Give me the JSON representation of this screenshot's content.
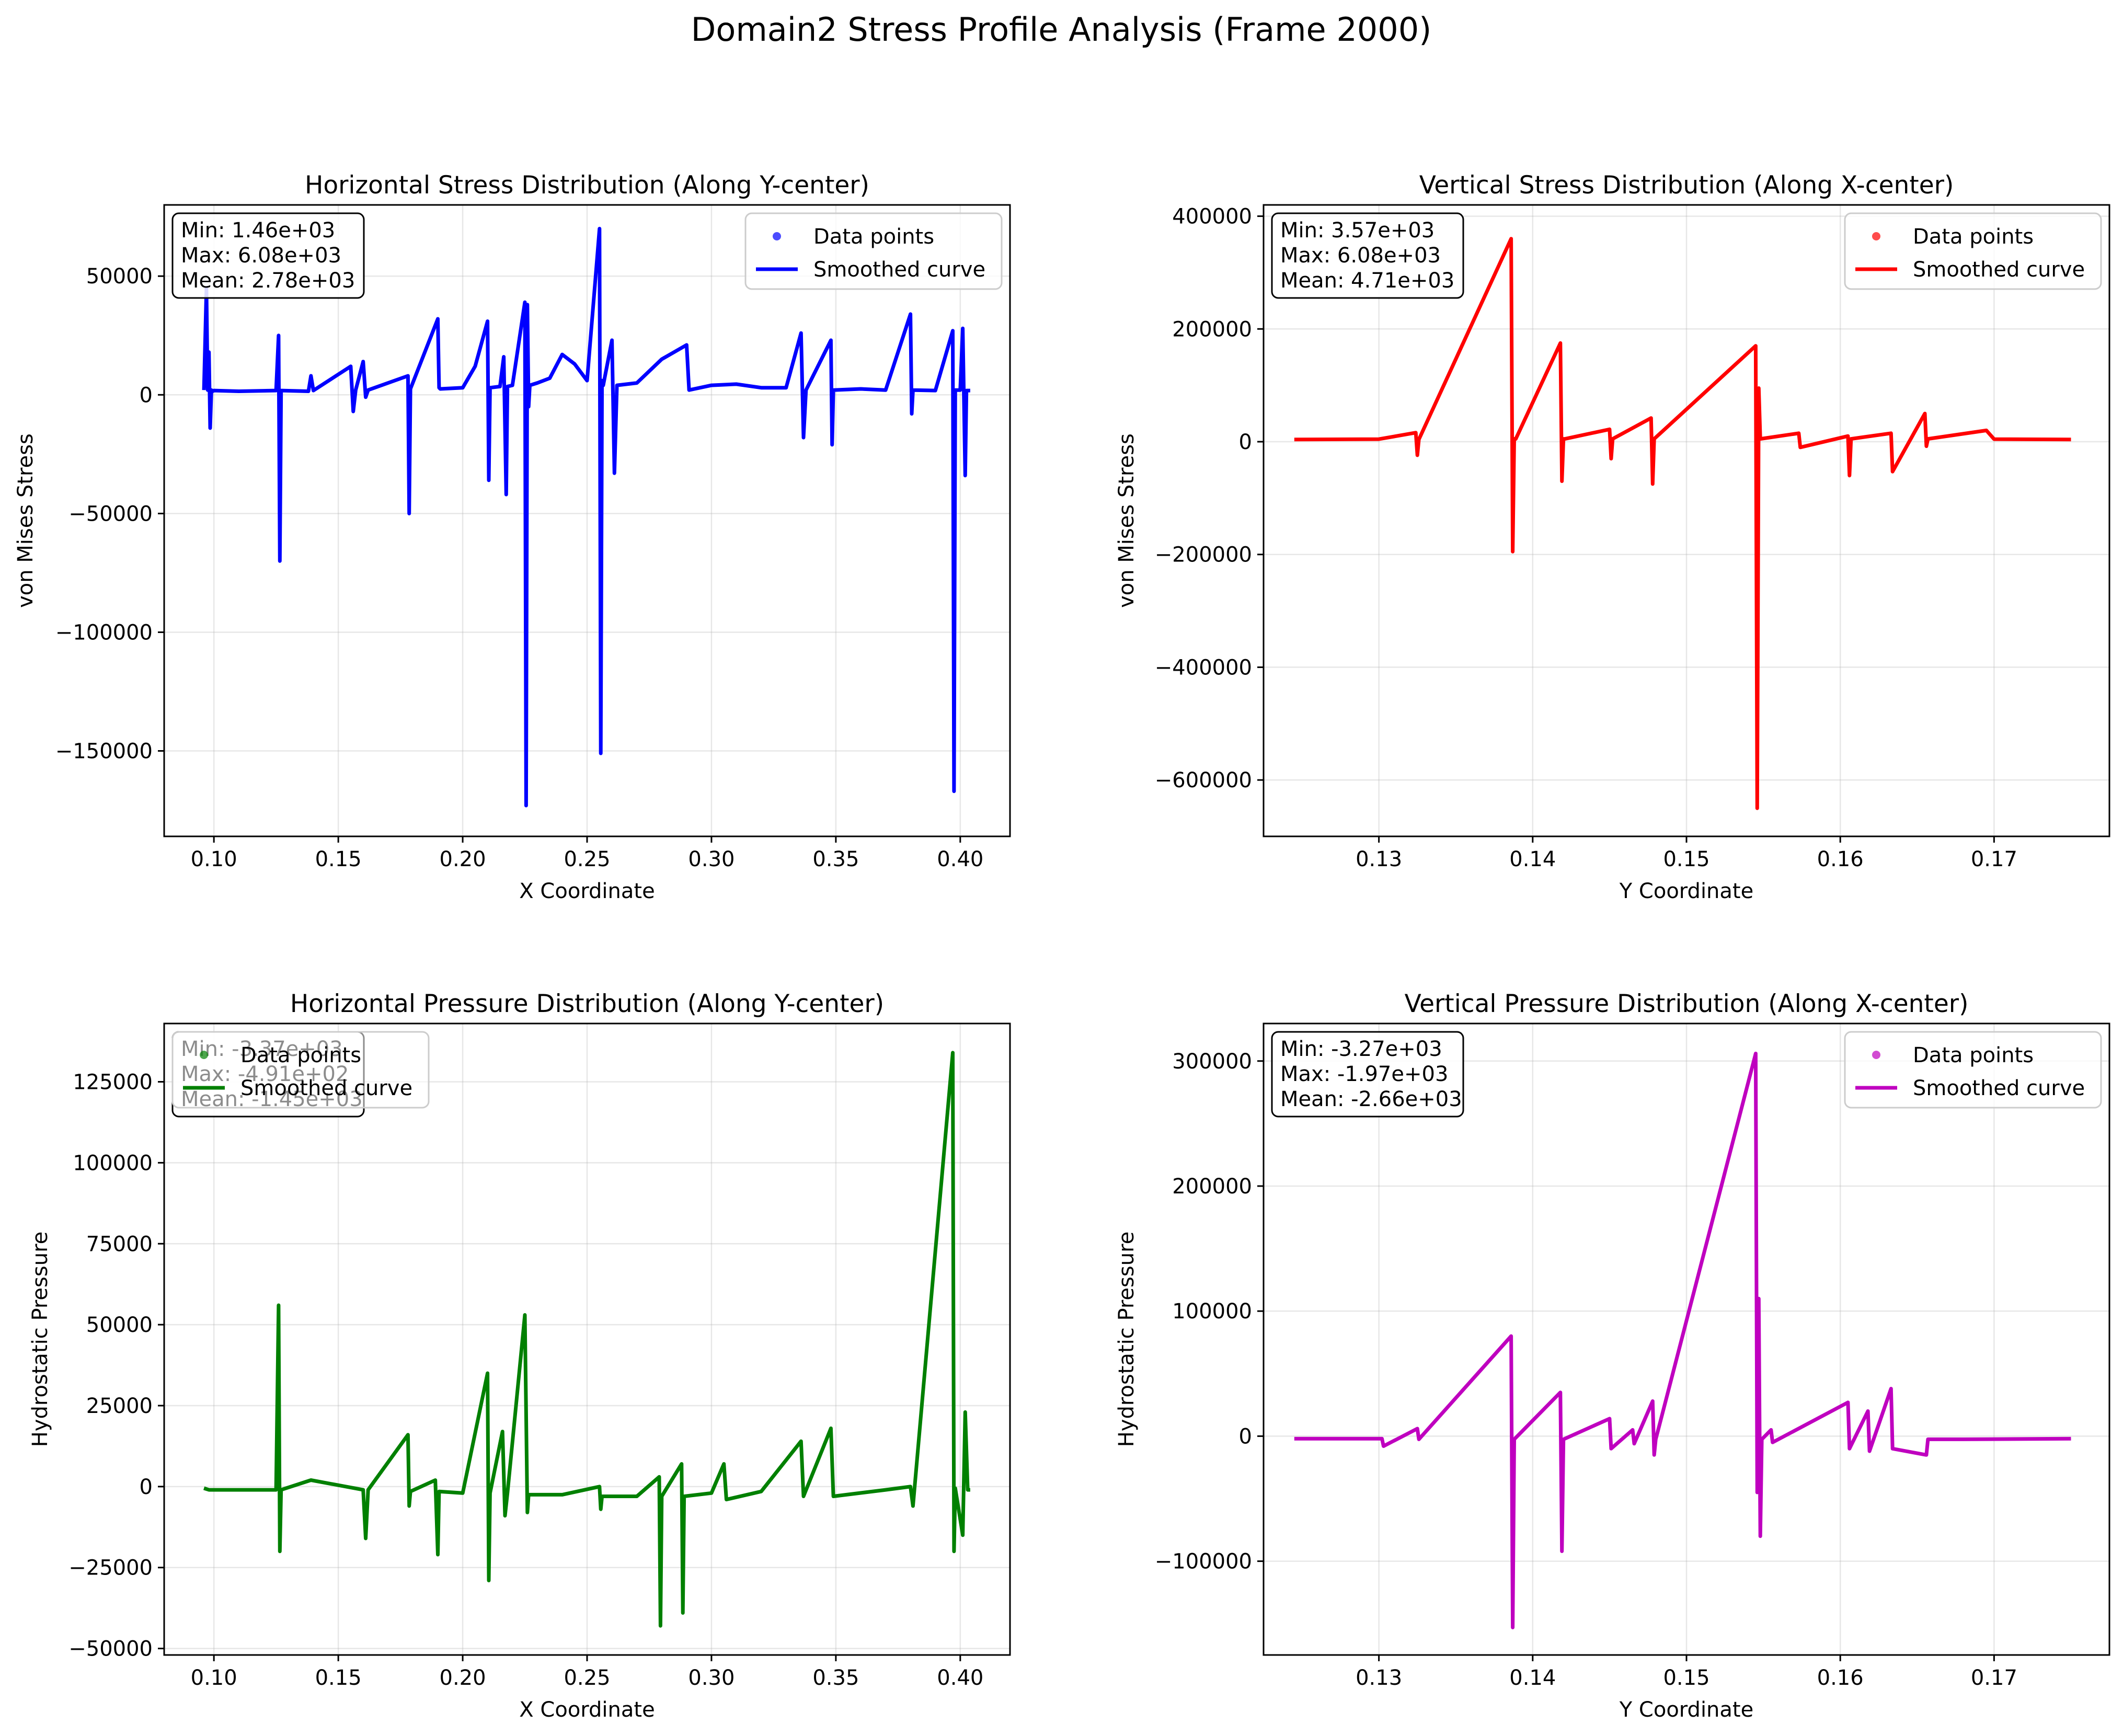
{
  "figure": {
    "title": "Domain2 Stress Profile Analysis (Frame 2000)"
  },
  "chart_data": [
    {
      "id": "p1",
      "type": "line",
      "title": "Horizontal Stress Distribution (Along Y-center)",
      "xlabel": "X Coordinate",
      "ylabel": "von Mises Stress",
      "xlim": [
        0.08,
        0.42
      ],
      "ylim": [
        -186000,
        80000
      ],
      "xticks": [
        0.1,
        0.15,
        0.2,
        0.25,
        0.3,
        0.35,
        0.4
      ],
      "xtick_labels": [
        "0.10",
        "0.15",
        "0.20",
        "0.25",
        "0.30",
        "0.35",
        "0.40"
      ],
      "yticks": [
        -150000,
        -100000,
        -50000,
        0,
        50000
      ],
      "ytick_labels": [
        "−150000",
        "−100000",
        "−50000",
        "0",
        "50000"
      ],
      "grid": true,
      "legend_position": "top-right",
      "color": "#0000ff",
      "stats": [
        "Min: 1.46e+03",
        "Max: 6.08e+03",
        "Mean: 2.78e+03"
      ],
      "series": [
        {
          "name": "Data points",
          "style": "markers"
        },
        {
          "name": "Smoothed curve",
          "style": "line",
          "x": [
            0.096,
            0.097,
            0.0975,
            0.098,
            0.0985,
            0.099,
            0.0995,
            0.1,
            0.11,
            0.125,
            0.126,
            0.1265,
            0.127,
            0.138,
            0.139,
            0.14,
            0.155,
            0.156,
            0.157,
            0.16,
            0.161,
            0.162,
            0.178,
            0.1785,
            0.179,
            0.19,
            0.1905,
            0.191,
            0.2,
            0.205,
            0.21,
            0.2105,
            0.211,
            0.215,
            0.2165,
            0.2175,
            0.218,
            0.22,
            0.225,
            0.2255,
            0.226,
            0.2265,
            0.227,
            0.23,
            0.235,
            0.24,
            0.245,
            0.25,
            0.255,
            0.2555,
            0.256,
            0.2565,
            0.26,
            0.261,
            0.262,
            0.27,
            0.28,
            0.29,
            0.291,
            0.3,
            0.31,
            0.32,
            0.33,
            0.336,
            0.337,
            0.338,
            0.348,
            0.3485,
            0.349,
            0.36,
            0.37,
            0.38,
            0.3805,
            0.381,
            0.39,
            0.397,
            0.3975,
            0.398,
            0.4,
            0.401,
            0.402,
            0.4025,
            0.403,
            0.404
          ],
          "values": [
            2000,
            45000,
            2000,
            18000,
            -14000,
            2000,
            1500,
            1800,
            1500,
            1800,
            25000,
            -70000,
            1800,
            1500,
            8000,
            1800,
            12000,
            -7000,
            2000,
            14000,
            -1000,
            2000,
            8000,
            -50000,
            2500,
            32000,
            3000,
            2500,
            3000,
            12000,
            31000,
            -36000,
            3000,
            3500,
            16000,
            -42000,
            3500,
            4000,
            39000,
            -173000,
            38000,
            -5000,
            4000,
            5000,
            7000,
            17000,
            13000,
            6000,
            70000,
            -151000,
            6000,
            4000,
            23000,
            -33000,
            4000,
            5000,
            15000,
            21000,
            2000,
            4000,
            4500,
            3000,
            3000,
            26000,
            -18000,
            2000,
            23000,
            -21000,
            2000,
            2500,
            2000,
            34000,
            -8000,
            2000,
            1800,
            27000,
            -167000,
            2000,
            2000,
            28000,
            -34000,
            1800,
            1800,
            1800
          ]
        }
      ]
    },
    {
      "id": "p2",
      "type": "line",
      "title": "Vertical Stress Distribution (Along X-center)",
      "xlabel": "Y Coordinate",
      "ylabel": "von Mises Stress",
      "xlim": [
        0.1225,
        0.1775
      ],
      "ylim": [
        -700000,
        420000
      ],
      "xticks": [
        0.13,
        0.14,
        0.15,
        0.16,
        0.17
      ],
      "xtick_labels": [
        "0.13",
        "0.14",
        "0.15",
        "0.16",
        "0.17"
      ],
      "yticks": [
        -600000,
        -400000,
        -200000,
        0,
        200000,
        400000
      ],
      "ytick_labels": [
        "−600000",
        "−400000",
        "−200000",
        "0",
        "200000",
        "400000"
      ],
      "grid": true,
      "legend_position": "top-right",
      "color": "#ff0000",
      "stats": [
        "Min: 3.57e+03",
        "Max: 6.08e+03",
        "Mean: 4.71e+03"
      ],
      "series": [
        {
          "name": "Data points",
          "style": "markers"
        },
        {
          "name": "Smoothed curve",
          "style": "line",
          "x": [
            0.1245,
            0.13,
            0.1324,
            0.1325,
            0.1326,
            0.1386,
            0.1387,
            0.1388,
            0.1389,
            0.1418,
            0.1419,
            0.142,
            0.1421,
            0.145,
            0.1451,
            0.1452,
            0.1477,
            0.1478,
            0.1479,
            0.1545,
            0.1546,
            0.1547,
            0.1548,
            0.1573,
            0.1574,
            0.1605,
            0.1606,
            0.1607,
            0.1633,
            0.1634,
            0.1655,
            0.1656,
            0.1657,
            0.1695,
            0.17,
            0.175
          ],
          "values": [
            4000,
            4500,
            16000,
            -24000,
            4000,
            360000,
            -195000,
            5000,
            5000,
            175000,
            -70000,
            5000,
            5000,
            22000,
            -30000,
            5000,
            42000,
            -75000,
            5000,
            170000,
            -650000,
            95000,
            5000,
            15000,
            -10000,
            10000,
            -60000,
            5000,
            15000,
            -53000,
            50000,
            -8000,
            5000,
            20000,
            4500,
            4000
          ]
        }
      ]
    },
    {
      "id": "p3",
      "type": "line",
      "title": "Horizontal Pressure Distribution (Along Y-center)",
      "xlabel": "X Coordinate",
      "ylabel": "Hydrostatic Pressure",
      "xlim": [
        0.08,
        0.42
      ],
      "ylim": [
        -52000,
        143000
      ],
      "xticks": [
        0.1,
        0.15,
        0.2,
        0.25,
        0.3,
        0.35,
        0.4
      ],
      "xtick_labels": [
        "0.10",
        "0.15",
        "0.20",
        "0.25",
        "0.30",
        "0.35",
        "0.40"
      ],
      "yticks": [
        -50000,
        -25000,
        0,
        25000,
        50000,
        75000,
        100000,
        125000
      ],
      "ytick_labels": [
        "−50000",
        "−25000",
        "0",
        "25000",
        "50000",
        "75000",
        "100000",
        "125000"
      ],
      "grid": true,
      "legend_position": "top-left",
      "color": "#008000",
      "stats": [
        "Min: -3.37e+03",
        "Max: -4.91e+02",
        "Mean: -1.45e+03"
      ],
      "series": [
        {
          "name": "Data points",
          "style": "markers"
        },
        {
          "name": "Smoothed curve",
          "style": "line",
          "x": [
            0.096,
            0.098,
            0.11,
            0.125,
            0.126,
            0.1265,
            0.127,
            0.139,
            0.16,
            0.161,
            0.162,
            0.178,
            0.1785,
            0.179,
            0.189,
            0.19,
            0.1905,
            0.2,
            0.21,
            0.2105,
            0.211,
            0.216,
            0.217,
            0.218,
            0.225,
            0.226,
            0.2265,
            0.24,
            0.255,
            0.2555,
            0.256,
            0.27,
            0.279,
            0.2795,
            0.28,
            0.288,
            0.2885,
            0.289,
            0.3,
            0.305,
            0.306,
            0.32,
            0.336,
            0.337,
            0.348,
            0.349,
            0.37,
            0.38,
            0.381,
            0.397,
            0.3975,
            0.398,
            0.401,
            0.402,
            0.403,
            0.404
          ],
          "values": [
            -500,
            -1000,
            -1000,
            -1000,
            56000,
            -20000,
            -1000,
            2000,
            -1000,
            -16000,
            -1000,
            16000,
            -6000,
            -1500,
            2000,
            -21000,
            -1500,
            -2000,
            35000,
            -29000,
            -2000,
            17000,
            -9000,
            -2000,
            53000,
            -8000,
            -2500,
            -2500,
            0,
            -7000,
            -3000,
            -3000,
            3000,
            -43000,
            -3000,
            7000,
            -39000,
            -3000,
            -2000,
            7000,
            -4000,
            -1500,
            14000,
            -3000,
            18000,
            -3000,
            -1000,
            0,
            -6000,
            134000,
            -20000,
            -500,
            -15000,
            23000,
            -1000,
            -1000
          ]
        }
      ]
    },
    {
      "id": "p4",
      "type": "line",
      "title": "Vertical Pressure Distribution (Along X-center)",
      "xlabel": "Y Coordinate",
      "ylabel": "Hydrostatic Pressure",
      "xlim": [
        0.1225,
        0.1775
      ],
      "ylim": [
        -175000,
        330000
      ],
      "xticks": [
        0.13,
        0.14,
        0.15,
        0.16,
        0.17
      ],
      "xtick_labels": [
        "0.13",
        "0.14",
        "0.15",
        "0.16",
        "0.17"
      ],
      "yticks": [
        -100000,
        0,
        100000,
        200000,
        300000
      ],
      "ytick_labels": [
        "−100000",
        "0",
        "100000",
        "200000",
        "300000"
      ],
      "grid": true,
      "legend_position": "top-right",
      "color": "#bf00bf",
      "stats": [
        "Min: -3.27e+03",
        "Max: -1.97e+03",
        "Mean: -2.66e+03"
      ],
      "series": [
        {
          "name": "Data points",
          "style": "markers"
        },
        {
          "name": "Smoothed curve",
          "style": "line",
          "x": [
            0.1245,
            0.1302,
            0.1303,
            0.1325,
            0.1326,
            0.1386,
            0.1387,
            0.1388,
            0.1418,
            0.1419,
            0.142,
            0.145,
            0.1451,
            0.1465,
            0.1466,
            0.1478,
            0.1479,
            0.148,
            0.1545,
            0.1546,
            0.1547,
            0.1548,
            0.1549,
            0.1555,
            0.1556,
            0.1605,
            0.1606,
            0.1618,
            0.1619,
            0.1633,
            0.1634,
            0.1656,
            0.1657,
            0.168,
            0.175
          ],
          "values": [
            -2000,
            -2000,
            -8000,
            6000,
            -2500,
            80000,
            -153000,
            -2500,
            35000,
            -92000,
            -2500,
            14000,
            -10000,
            5000,
            -6000,
            28000,
            -15000,
            -2500,
            306000,
            -45000,
            110000,
            -80000,
            -2500,
            5000,
            -5000,
            27000,
            -10000,
            20000,
            -12000,
            38000,
            -10000,
            -15000,
            -2500,
            -2500,
            -2000
          ]
        }
      ]
    }
  ]
}
